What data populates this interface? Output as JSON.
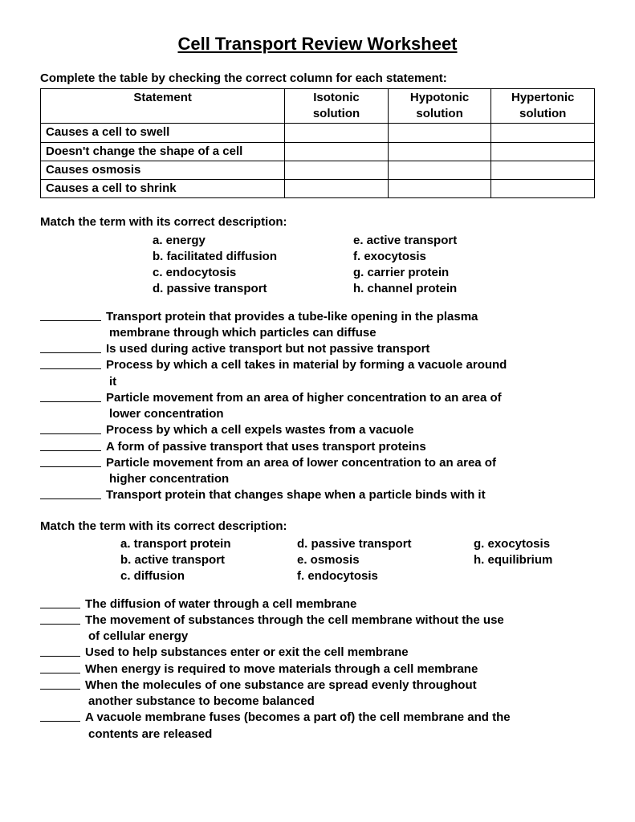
{
  "title": "Cell Transport Review Worksheet",
  "table": {
    "instruction": "Complete the table by checking the correct column for each statement:",
    "headers": [
      "Statement",
      "Isotonic solution",
      "Hypotonic solution",
      "Hypertonic solution"
    ],
    "rows": [
      "Causes a cell to swell",
      "Doesn't change the shape of a cell",
      "Causes osmosis",
      "Causes a cell to shrink"
    ]
  },
  "match1": {
    "instruction": "Match the term with its correct description:",
    "terms": {
      "a": "a. energy",
      "b": "b. facilitated diffusion",
      "c": "c. endocytosis",
      "d": "d. passive transport",
      "e": "e. active transport",
      "f": "f. exocytosis",
      "g": "g. carrier protein",
      "h": "h. channel protein"
    },
    "questions": [
      {
        "l1": "Transport protein that provides a tube-like opening in the plasma",
        "l2": "membrane through which particles can diffuse"
      },
      {
        "l1": "Is used during active transport but not passive transport"
      },
      {
        "l1": "Process by which a cell takes in material by forming a vacuole around",
        "l2": "it"
      },
      {
        "l1": "Particle movement from an area of higher concentration to an area of",
        "l2": "lower concentration"
      },
      {
        "l1": "Process by which a cell expels wastes from a vacuole"
      },
      {
        "l1": "A form of passive transport that uses transport proteins"
      },
      {
        "l1": "Particle movement from an area of lower concentration to an area of",
        "l2": "higher concentration"
      },
      {
        "l1": "Transport protein that changes shape when a particle binds with it"
      }
    ]
  },
  "match2": {
    "instruction": "Match the term with its correct description:",
    "terms": {
      "a": "a. transport protein",
      "b": "b. active transport",
      "c": "c. diffusion",
      "d": "d. passive transport",
      "e": "e. osmosis",
      "f": "f. endocytosis",
      "g": "g. exocytosis",
      "h": "h. equilibrium"
    },
    "questions": [
      {
        "l1": "The diffusion of water through a cell membrane"
      },
      {
        "l1": "The movement of substances through the cell membrane without the use",
        "l2": "of cellular energy"
      },
      {
        "l1": "Used to help substances enter or exit the cell membrane"
      },
      {
        "l1": "When energy is required to move materials through a cell membrane"
      },
      {
        "l1": "When the molecules of one substance are spread evenly throughout",
        "l2": "another substance to become balanced"
      },
      {
        "l1": "A vacuole membrane fuses (becomes a part of) the cell membrane and the",
        "l2": "contents are released"
      }
    ]
  }
}
